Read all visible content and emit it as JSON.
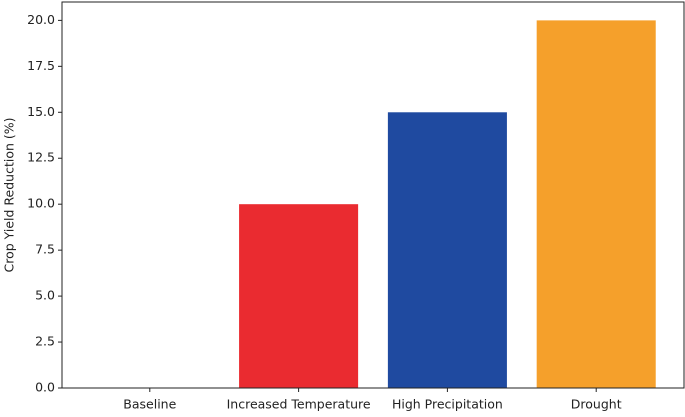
{
  "chart_data": {
    "type": "bar",
    "ylabel": "Crop Yield Reduction (%)",
    "categories": [
      "Baseline",
      "Increased Temperature",
      "High Precipitation",
      "Drought"
    ],
    "values": [
      0,
      10,
      15,
      20
    ],
    "colors": [
      null,
      "#ea2b30",
      "#1f4aa0",
      "#f5a02b"
    ],
    "ylim": [
      0,
      21
    ],
    "yticks": [
      {
        "value": 0,
        "label": "0.0"
      },
      2.5,
      {
        "value": 5,
        "label": "5.0"
      },
      7.5,
      {
        "value": 10,
        "label": "10.0"
      },
      12.5,
      {
        "value": 15,
        "label": "15.0"
      },
      17.5,
      {
        "value": 20,
        "label": "20.0"
      }
    ]
  }
}
